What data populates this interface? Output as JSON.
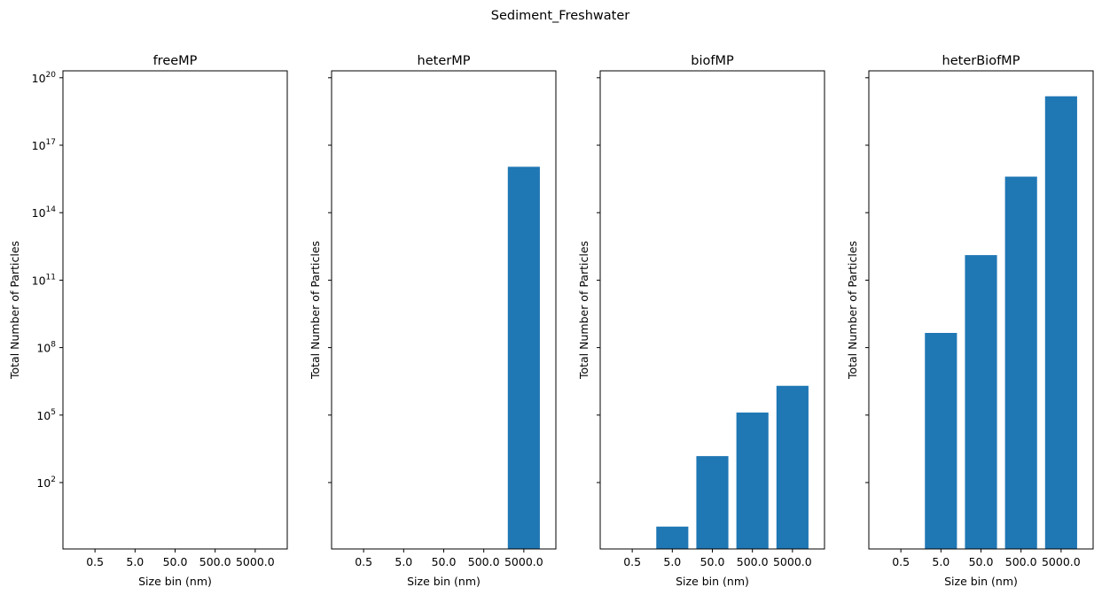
{
  "figure": {
    "suptitle": "Sediment_Freshwater"
  },
  "chart_data": [
    {
      "type": "bar",
      "title": "freeMP",
      "xlabel": "Size bin (nm)",
      "ylabel": "Total Number of Particles",
      "yscale": "log",
      "categories": [
        "0.5",
        "5.0",
        "50.0",
        "500.0",
        "5000.0"
      ],
      "values": [
        0,
        0,
        0,
        0,
        0
      ],
      "ylim": [
        0.01,
        3e+20
      ],
      "yticks": [
        {
          "value": 100,
          "base": "10",
          "exp": "2"
        },
        {
          "value": 100000,
          "base": "10",
          "exp": "5"
        },
        {
          "value": 100000000,
          "base": "10",
          "exp": "8"
        },
        {
          "value": 100000000000.0,
          "base": "10",
          "exp": "11"
        },
        {
          "value": 100000000000000.0,
          "base": "10",
          "exp": "14"
        },
        {
          "value": 1e+17,
          "base": "10",
          "exp": "17"
        },
        {
          "value": 1e+20,
          "base": "10",
          "exp": "20"
        }
      ],
      "show_yticklabels": true,
      "color": "#1f77b4"
    },
    {
      "type": "bar",
      "title": "heterMP",
      "xlabel": "Size bin (nm)",
      "ylabel": "Total Number of Particles",
      "yscale": "log",
      "categories": [
        "0.5",
        "5.0",
        "50.0",
        "500.0",
        "5000.0"
      ],
      "values": [
        0,
        0,
        0,
        0,
        1.1e+16
      ],
      "ylim": [
        0.01,
        3e+20
      ],
      "show_yticklabels": false,
      "color": "#1f77b4"
    },
    {
      "type": "bar",
      "title": "biofMP",
      "xlabel": "Size bin (nm)",
      "ylabel": "Total Number of Particles",
      "yscale": "log",
      "categories": [
        "0.5",
        "5.0",
        "50.0",
        "500.0",
        "5000.0"
      ],
      "values": [
        0,
        1.1,
        1500,
        130000,
        2000000
      ],
      "ylim": [
        0.01,
        3e+20
      ],
      "show_yticklabels": false,
      "color": "#1f77b4"
    },
    {
      "type": "bar",
      "title": "heterBiofMP",
      "xlabel": "Size bin (nm)",
      "ylabel": "Total Number of Particles",
      "yscale": "log",
      "categories": [
        "0.5",
        "5.0",
        "50.0",
        "500.0",
        "5000.0"
      ],
      "values": [
        0,
        450000000,
        1300000000000,
        4000000000000000.0,
        1.5e+19
      ],
      "ylim": [
        0.01,
        3e+20
      ],
      "show_yticklabels": false,
      "color": "#1f77b4"
    }
  ]
}
